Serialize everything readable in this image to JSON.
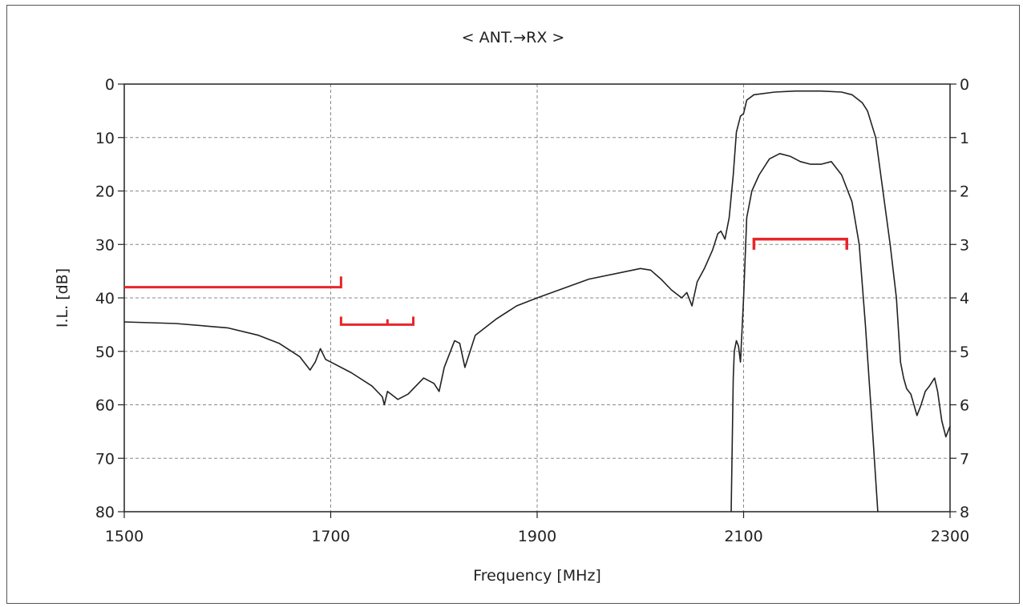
{
  "chart_data": {
    "type": "line",
    "title": "< ANT.→RX >",
    "xlabel": "Frequency [MHz]",
    "ylabel": "I.L. [dB]",
    "xlim": [
      1500,
      2300
    ],
    "ylim": [
      0,
      80
    ],
    "ylim_right": [
      0,
      8
    ],
    "x_ticks": [
      1500,
      1700,
      1900,
      2100,
      2300
    ],
    "x_ticks_labels": [
      "1500",
      "1700",
      "1900",
      "2100",
      "2300"
    ],
    "y_ticks": [
      0,
      10,
      20,
      30,
      40,
      50,
      60,
      70,
      80
    ],
    "y_ticks_labels": [
      "0",
      "10",
      "20",
      "30",
      "40",
      "50",
      "60",
      "70",
      "80"
    ],
    "y_ticks_right_labels": [
      "0",
      "1",
      "2",
      "3",
      "4",
      "5",
      "6",
      "7",
      "8"
    ],
    "grid": true,
    "line_color": "#222222",
    "spec_color": "#e8262a",
    "series": [
      {
        "axis": "left",
        "points": [
          [
            1500,
            44.5
          ],
          [
            1550,
            44.8
          ],
          [
            1600,
            45.6
          ],
          [
            1630,
            47.0
          ],
          [
            1650,
            48.5
          ],
          [
            1670,
            51.0
          ],
          [
            1680,
            53.5
          ],
          [
            1685,
            52.0
          ],
          [
            1690,
            49.5
          ],
          [
            1695,
            51.5
          ],
          [
            1700,
            52.0
          ],
          [
            1720,
            54.0
          ],
          [
            1740,
            56.5
          ],
          [
            1750,
            58.5
          ],
          [
            1752,
            60.0
          ],
          [
            1755,
            57.5
          ],
          [
            1765,
            59.0
          ],
          [
            1775,
            58.0
          ],
          [
            1790,
            55.0
          ],
          [
            1800,
            56.0
          ],
          [
            1805,
            57.5
          ],
          [
            1810,
            53.0
          ],
          [
            1820,
            48.0
          ],
          [
            1825,
            48.5
          ],
          [
            1830,
            53.0
          ],
          [
            1840,
            47.0
          ],
          [
            1860,
            44.0
          ],
          [
            1880,
            41.5
          ],
          [
            1900,
            40.0
          ],
          [
            1950,
            36.5
          ],
          [
            2000,
            34.5
          ],
          [
            2010,
            34.8
          ],
          [
            2020,
            36.5
          ],
          [
            2030,
            38.5
          ],
          [
            2040,
            40.0
          ],
          [
            2045,
            39.0
          ],
          [
            2050,
            41.5
          ],
          [
            2055,
            37.0
          ],
          [
            2062,
            34.5
          ],
          [
            2070,
            31.0
          ],
          [
            2075,
            28.0
          ],
          [
            2078,
            27.5
          ],
          [
            2082,
            29.0
          ],
          [
            2086,
            25.0
          ],
          [
            2090,
            17.0
          ],
          [
            2093,
            9.0
          ],
          [
            2097,
            6.0
          ],
          [
            2100,
            5.5
          ],
          [
            2103,
            3.0
          ],
          [
            2110,
            2.0
          ],
          [
            2130,
            1.5
          ],
          [
            2150,
            1.3
          ],
          [
            2175,
            1.3
          ],
          [
            2195,
            1.5
          ],
          [
            2205,
            2.0
          ],
          [
            2215,
            3.5
          ],
          [
            2220,
            5.0
          ],
          [
            2228,
            10.0
          ],
          [
            2235,
            20.0
          ],
          [
            2242,
            30.0
          ],
          [
            2248,
            40.0
          ],
          [
            2252,
            52.0
          ],
          [
            2255,
            55.0
          ],
          [
            2258,
            57.0
          ],
          [
            2262,
            58.0
          ],
          [
            2268,
            62.0
          ],
          [
            2272,
            60.0
          ],
          [
            2276,
            57.5
          ],
          [
            2280,
            56.5
          ],
          [
            2285,
            55.0
          ],
          [
            2288,
            57.5
          ],
          [
            2292,
            63.0
          ],
          [
            2296,
            66.0
          ],
          [
            2300,
            64.0
          ]
        ]
      },
      {
        "axis": "right",
        "points": [
          [
            2088,
            8.0
          ],
          [
            2090,
            5.5
          ],
          [
            2091,
            5.0
          ],
          [
            2093,
            4.8
          ],
          [
            2095,
            4.9
          ],
          [
            2097,
            5.2
          ],
          [
            2100,
            4.0
          ],
          [
            2103,
            2.5
          ],
          [
            2108,
            2.0
          ],
          [
            2115,
            1.7
          ],
          [
            2125,
            1.4
          ],
          [
            2135,
            1.3
          ],
          [
            2145,
            1.35
          ],
          [
            2155,
            1.45
          ],
          [
            2165,
            1.5
          ],
          [
            2175,
            1.5
          ],
          [
            2185,
            1.45
          ],
          [
            2195,
            1.7
          ],
          [
            2205,
            2.2
          ],
          [
            2212,
            3.0
          ],
          [
            2218,
            4.5
          ],
          [
            2225,
            6.5
          ],
          [
            2230,
            8.0
          ]
        ]
      }
    ],
    "spec_masks": [
      {
        "from": 1500,
        "to": 1710,
        "level": 38,
        "end_tick": 36
      },
      {
        "from": 1710,
        "to": 1780,
        "level": 45,
        "mid": 1755,
        "tick_up": 44
      },
      {
        "from": 2110,
        "to": 2200,
        "level": 29,
        "tick_down": 31
      }
    ]
  }
}
